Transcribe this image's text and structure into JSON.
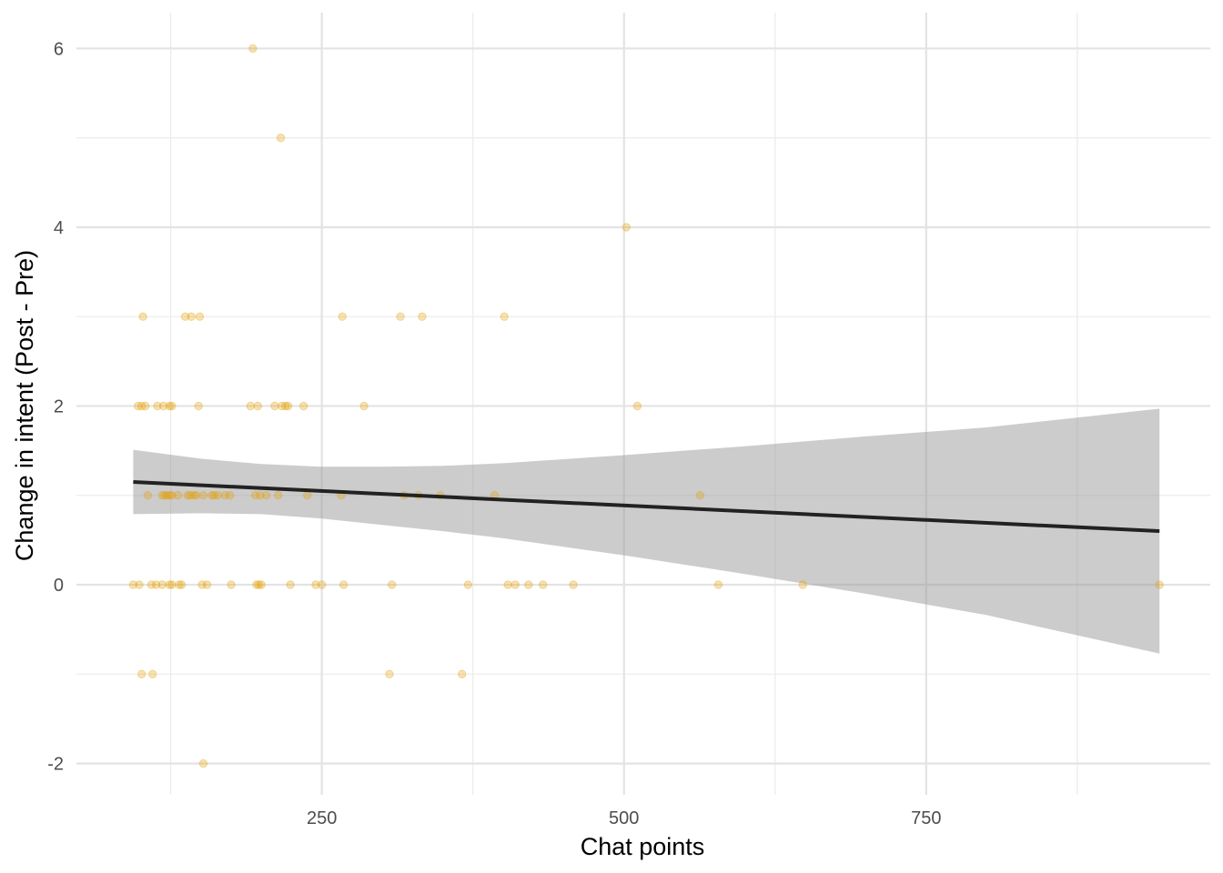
{
  "chart_data": {
    "type": "scatter",
    "xlabel": "Chat points",
    "ylabel": "Change in intent (Post - Pre)",
    "xlim": [
      47,
      985
    ],
    "ylim": [
      -2.35,
      6.4
    ],
    "x_ticks": [
      250,
      500,
      750
    ],
    "x_minor_ticks": [
      125,
      375,
      625,
      875
    ],
    "y_ticks": [
      -2,
      0,
      2,
      4,
      6
    ],
    "y_minor_ticks": [
      -1,
      1,
      3,
      5
    ],
    "grid": true,
    "point_color": "#E69F00",
    "point_opacity": 0.3,
    "band_color": "#999999",
    "band_opacity": 0.5,
    "line_color": "#222222",
    "series": [
      {
        "type": "points",
        "points": [
          [
            193,
            6
          ],
          [
            216,
            5
          ],
          [
            502,
            4
          ],
          [
            102,
            3
          ],
          [
            137,
            3
          ],
          [
            142,
            3
          ],
          [
            149,
            3
          ],
          [
            267,
            3
          ],
          [
            315,
            3
          ],
          [
            333,
            3
          ],
          [
            401,
            3
          ],
          [
            98,
            2
          ],
          [
            101,
            2
          ],
          [
            104,
            2
          ],
          [
            114,
            2
          ],
          [
            119,
            2
          ],
          [
            124,
            2
          ],
          [
            126,
            2
          ],
          [
            148,
            2
          ],
          [
            191,
            2
          ],
          [
            197,
            2
          ],
          [
            211,
            2
          ],
          [
            217,
            2
          ],
          [
            220,
            2
          ],
          [
            222,
            2
          ],
          [
            235,
            2
          ],
          [
            285,
            2
          ],
          [
            511,
            2
          ],
          [
            106,
            1
          ],
          [
            118,
            1
          ],
          [
            120,
            1
          ],
          [
            122,
            1
          ],
          [
            124,
            1
          ],
          [
            126,
            1
          ],
          [
            131,
            1
          ],
          [
            139,
            1
          ],
          [
            141,
            1
          ],
          [
            144,
            1
          ],
          [
            146,
            1
          ],
          [
            152,
            1
          ],
          [
            159,
            1
          ],
          [
            161,
            1
          ],
          [
            164,
            1
          ],
          [
            170,
            1
          ],
          [
            174,
            1
          ],
          [
            195,
            1
          ],
          [
            199,
            1
          ],
          [
            204,
            1
          ],
          [
            214,
            1
          ],
          [
            238,
            1
          ],
          [
            266,
            1
          ],
          [
            318,
            1
          ],
          [
            330,
            1
          ],
          [
            348,
            1
          ],
          [
            393,
            1
          ],
          [
            563,
            1
          ],
          [
            94,
            0
          ],
          [
            99,
            0
          ],
          [
            109,
            0
          ],
          [
            113,
            0
          ],
          [
            118,
            0
          ],
          [
            124,
            0
          ],
          [
            126,
            0
          ],
          [
            132,
            0
          ],
          [
            134,
            0
          ],
          [
            151,
            0
          ],
          [
            155,
            0
          ],
          [
            175,
            0
          ],
          [
            196,
            0
          ],
          [
            198,
            0
          ],
          [
            200,
            0
          ],
          [
            224,
            0
          ],
          [
            245,
            0
          ],
          [
            250,
            0
          ],
          [
            268,
            0
          ],
          [
            308,
            0
          ],
          [
            371,
            0
          ],
          [
            404,
            0
          ],
          [
            410,
            0
          ],
          [
            421,
            0
          ],
          [
            433,
            0
          ],
          [
            458,
            0
          ],
          [
            578,
            0
          ],
          [
            648,
            0
          ],
          [
            943,
            0
          ],
          [
            101,
            -1
          ],
          [
            110,
            -1
          ],
          [
            306,
            -1
          ],
          [
            366,
            -1
          ],
          [
            152,
            -2
          ]
        ]
      },
      {
        "type": "line",
        "name": "",
        "x": [
          94,
          943
        ],
        "y": [
          1.15,
          0.6
        ]
      },
      {
        "type": "band",
        "x": [
          94,
          150,
          200,
          250,
          300,
          350,
          400,
          500,
          600,
          700,
          800,
          943
        ],
        "lower": [
          0.79,
          0.8,
          0.79,
          0.74,
          0.67,
          0.6,
          0.52,
          0.33,
          0.12,
          -0.1,
          -0.34,
          -0.77
        ],
        "upper": [
          1.51,
          1.41,
          1.35,
          1.32,
          1.32,
          1.33,
          1.36,
          1.45,
          1.55,
          1.66,
          1.76,
          1.97
        ]
      }
    ]
  }
}
